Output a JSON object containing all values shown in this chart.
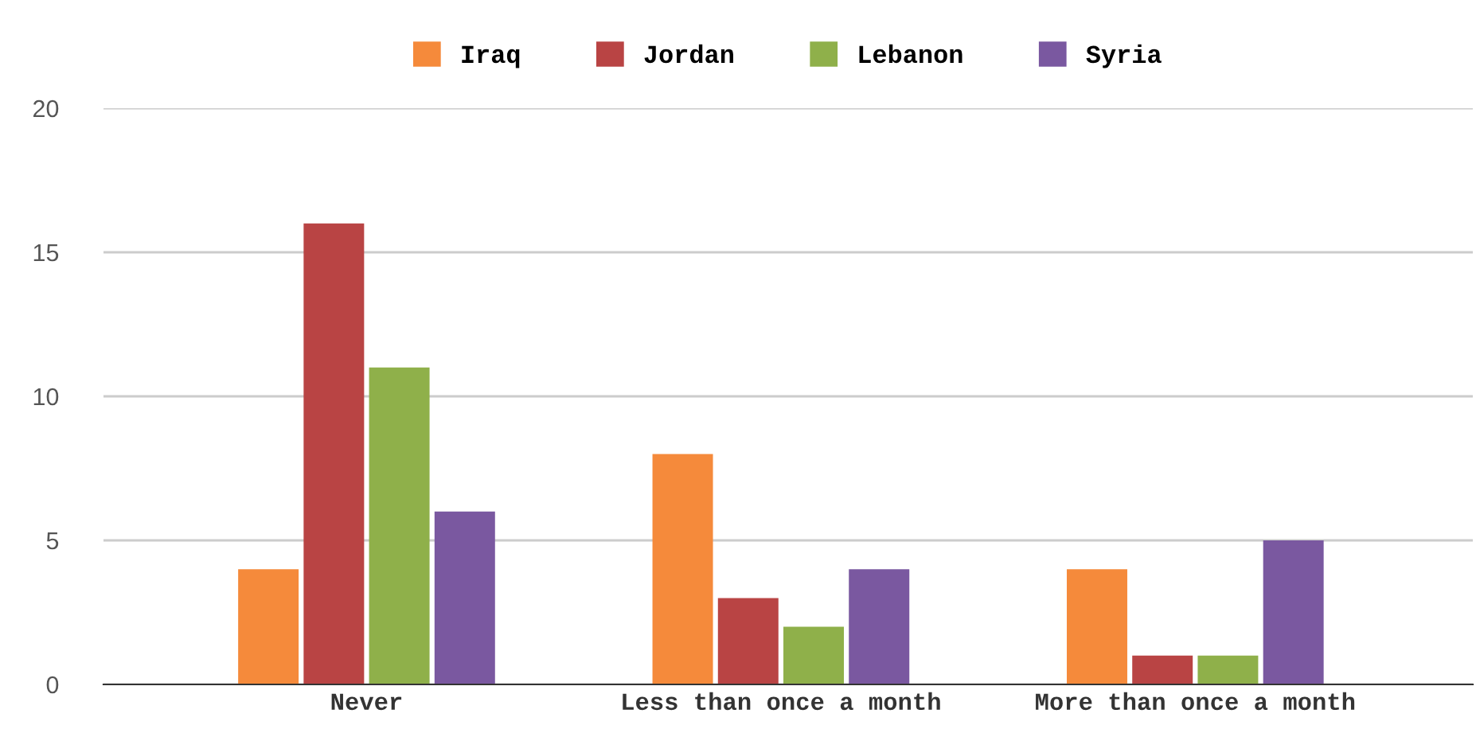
{
  "chart_data": {
    "type": "bar",
    "categories": [
      "Never",
      "Less than once a month",
      "More than once a month"
    ],
    "series": [
      {
        "name": "Iraq",
        "color": "#f58a3b",
        "values": [
          4,
          8,
          4
        ]
      },
      {
        "name": "Jordan",
        "color": "#b94444",
        "values": [
          16,
          3,
          1
        ]
      },
      {
        "name": "Lebanon",
        "color": "#8fb04a",
        "values": [
          11,
          2,
          1
        ]
      },
      {
        "name": "Syria",
        "color": "#7a58a0",
        "values": [
          6,
          4,
          5
        ]
      }
    ],
    "ylim": [
      0,
      20
    ],
    "yticks": [
      0,
      5,
      10,
      15,
      20
    ],
    "grid": "y",
    "legend": "top"
  }
}
